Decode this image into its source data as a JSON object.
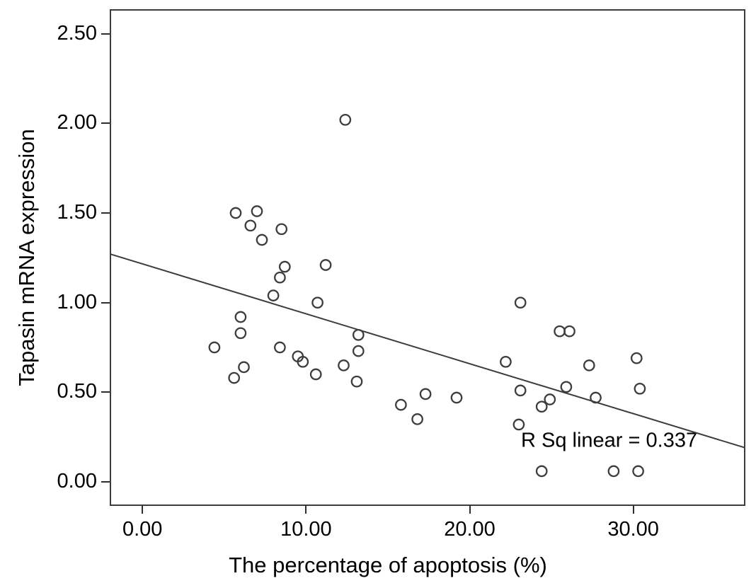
{
  "chart_data": {
    "type": "scatter",
    "title": "",
    "xlabel": "The percentage of apoptosis (%)",
    "ylabel": "Tapasin mRNA expression",
    "annotation": "R Sq linear = 0.337",
    "r_squared": 0.337,
    "xlim": [
      -2.0,
      36.85
    ],
    "ylim": [
      -0.134,
      2.637
    ],
    "x_ticks": [
      0,
      10,
      20,
      30
    ],
    "x_tick_labels": [
      "0.00",
      "10.00",
      "20.00",
      "30.00"
    ],
    "y_ticks": [
      0,
      0.5,
      1.0,
      1.5,
      2.0,
      2.5
    ],
    "y_tick_labels": [
      "0.00",
      "0.50",
      "1.00",
      "1.50",
      "2.00",
      "2.50"
    ],
    "grid": false,
    "legend": "none",
    "marker": "open-circle",
    "points": [
      [
        5.7,
        1.5
      ],
      [
        7.0,
        1.51
      ],
      [
        6.6,
        1.43
      ],
      [
        8.5,
        1.41
      ],
      [
        7.3,
        1.35
      ],
      [
        8.7,
        1.2
      ],
      [
        11.2,
        1.21
      ],
      [
        8.4,
        1.14
      ],
      [
        8.0,
        1.04
      ],
      [
        12.4,
        2.02
      ],
      [
        10.7,
        1.0
      ],
      [
        6.0,
        0.92
      ],
      [
        6.0,
        0.83
      ],
      [
        4.4,
        0.75
      ],
      [
        8.4,
        0.75
      ],
      [
        9.5,
        0.7
      ],
      [
        9.8,
        0.67
      ],
      [
        6.2,
        0.64
      ],
      [
        12.3,
        0.65
      ],
      [
        13.2,
        0.82
      ],
      [
        13.2,
        0.73
      ],
      [
        5.6,
        0.58
      ],
      [
        10.6,
        0.6
      ],
      [
        13.1,
        0.56
      ],
      [
        23.1,
        1.0
      ],
      [
        25.5,
        0.84
      ],
      [
        26.1,
        0.84
      ],
      [
        22.2,
        0.67
      ],
      [
        27.3,
        0.65
      ],
      [
        30.2,
        0.69
      ],
      [
        23.1,
        0.51
      ],
      [
        25.9,
        0.53
      ],
      [
        30.4,
        0.52
      ],
      [
        19.2,
        0.47
      ],
      [
        24.9,
        0.46
      ],
      [
        24.4,
        0.42
      ],
      [
        27.7,
        0.47
      ],
      [
        15.8,
        0.43
      ],
      [
        17.3,
        0.49
      ],
      [
        16.8,
        0.35
      ],
      [
        23.0,
        0.32
      ],
      [
        24.4,
        0.06
      ],
      [
        28.8,
        0.06
      ],
      [
        30.3,
        0.06
      ]
    ],
    "regression_line": {
      "x1": -2.0,
      "y1": 1.272,
      "x2": 36.85,
      "y2": 0.19
    },
    "colors": {
      "marker": "#3d3d3d",
      "line": "#3d3d3d",
      "frame": "#3c3c3c",
      "tick": "#2e2e2e",
      "text": "#000000",
      "background": "#ffffff"
    }
  }
}
